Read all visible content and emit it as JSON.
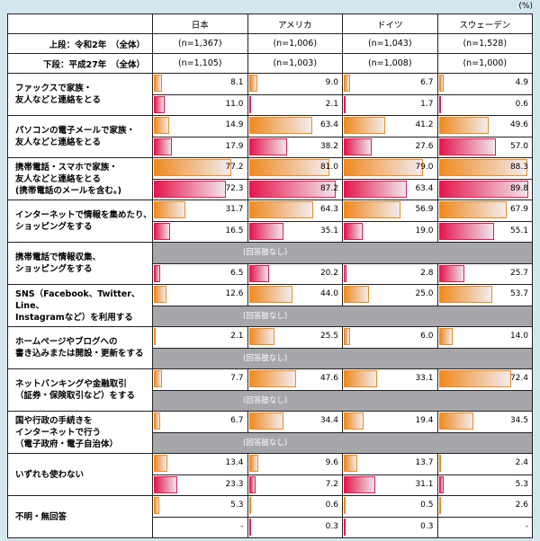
{
  "chart_data": {
    "type": "bar",
    "unit": "(%)",
    "countries": [
      "日本",
      "アメリカ",
      "ドイツ",
      "スウェーデン"
    ],
    "series": [
      {
        "name": "上段：令和2年　（全体）",
        "n": [
          "(n=1,367)",
          "(n=1,006)",
          "(n=1,043)",
          "(n=1,528)"
        ],
        "color": "#f08a1f"
      },
      {
        "name": "下段：平成27年　（全体）",
        "n": [
          "(n=1,105)",
          "(n=1,003)",
          "(n=1,008)",
          "(n=1,000)"
        ],
        "color": "#e6174d"
      }
    ],
    "no_option_label": "(回答肢なし)",
    "xlim": [
      0,
      100
    ],
    "rows": [
      {
        "label": [
          "ファックスで家族・",
          "友人などと連絡をとる"
        ],
        "r2": [
          8.1,
          9.0,
          6.7,
          4.9
        ],
        "h27": [
          11.0,
          2.1,
          1.7,
          0.6
        ]
      },
      {
        "label": [
          "パソコンの電子メールで家族・",
          "友人などと連絡をとる"
        ],
        "r2": [
          14.9,
          63.4,
          41.2,
          49.6
        ],
        "h27": [
          17.9,
          38.2,
          27.6,
          57.0
        ]
      },
      {
        "label": [
          "携帯電話・スマホで家族・",
          "友人などと連絡をとる",
          "(携帯電話のメールを含む。)"
        ],
        "r2": [
          77.2,
          81.0,
          79.0,
          88.3
        ],
        "h27": [
          72.3,
          87.2,
          63.4,
          89.8
        ]
      },
      {
        "label": [
          "インターネットで情報を集めたり、",
          "ショッピングをする"
        ],
        "r2": [
          31.7,
          64.3,
          56.9,
          67.9
        ],
        "h27": [
          16.5,
          35.1,
          19.0,
          55.1
        ]
      },
      {
        "label": [
          "携帯電話で情報収集、",
          "ショッピングをする"
        ],
        "r2": null,
        "h27": [
          6.5,
          20.2,
          2.8,
          25.7
        ]
      },
      {
        "label": [
          "SNS（Facebook、Twitter、Line、",
          "Instagramなど）を利用する"
        ],
        "r2": [
          12.6,
          44.0,
          25.0,
          53.7
        ],
        "h27": null
      },
      {
        "label": [
          "ホームページやブログへの",
          "書き込みまたは開設・更新をする"
        ],
        "r2": [
          2.1,
          25.5,
          6.0,
          14.0
        ],
        "h27": null
      },
      {
        "label": [
          "ネットバンキングや金融取引",
          "（証券・保険取引など）をする"
        ],
        "r2": [
          7.7,
          47.6,
          33.1,
          72.4
        ],
        "h27": null
      },
      {
        "label": [
          "国や行政の手続きを",
          "インターネットで行う",
          "（電子政府・電子自治体）"
        ],
        "r2": [
          6.7,
          34.4,
          19.4,
          34.5
        ],
        "h27": null
      },
      {
        "label": [
          "いずれも使わない"
        ],
        "r2": [
          13.4,
          9.6,
          13.7,
          2.4
        ],
        "h27": [
          23.3,
          7.2,
          31.1,
          5.3
        ]
      },
      {
        "label": [
          "不明・無回答"
        ],
        "r2": [
          5.3,
          0.6,
          0.5,
          2.6
        ],
        "h27": [
          "-",
          0.3,
          0.3,
          "-"
        ]
      }
    ]
  }
}
